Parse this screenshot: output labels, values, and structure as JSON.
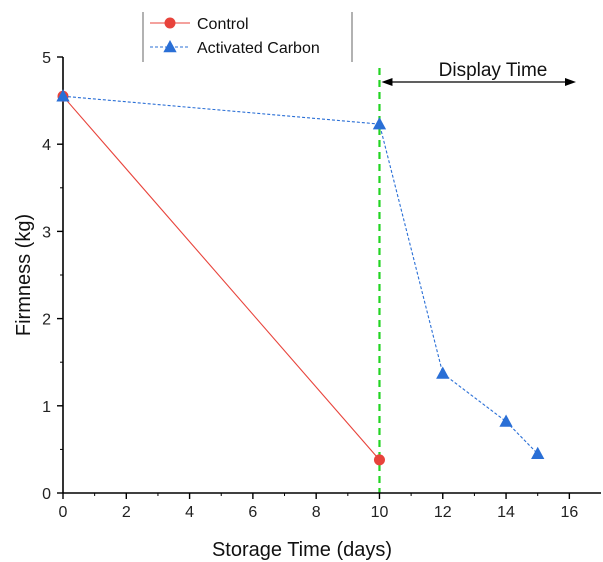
{
  "chart_data": {
    "type": "line",
    "xlabel": "Storage Time (days)",
    "ylabel": "Firmness (kg)",
    "xlim": [
      0,
      17
    ],
    "ylim": [
      0,
      5
    ],
    "xticks": [
      0,
      2,
      4,
      6,
      8,
      10,
      12,
      14,
      16
    ],
    "yticks": [
      0,
      1,
      2,
      3,
      4,
      5
    ],
    "grid": false,
    "legend_position": "top-left",
    "series": [
      {
        "name": "Control",
        "marker": "circle",
        "color": "#e8433b",
        "line_style": "solid",
        "x": [
          0,
          10
        ],
        "y": [
          4.55,
          0.38
        ]
      },
      {
        "name": "Activated Carbon",
        "marker": "triangle",
        "color": "#2a6fd6",
        "line_style": "dashed",
        "x": [
          0,
          10,
          12,
          14,
          15
        ],
        "y": [
          4.55,
          4.23,
          1.37,
          0.82,
          0.45
        ]
      }
    ],
    "annotations": {
      "vline_x": 10,
      "vline_color": "#22d422",
      "display_label": "Display Time"
    }
  }
}
